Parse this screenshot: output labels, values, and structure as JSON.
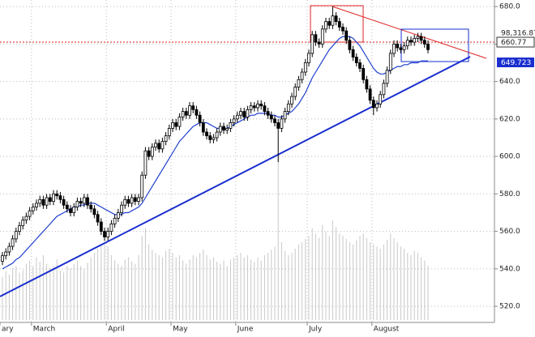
{
  "chart_data": {
    "type": "candlestick",
    "categories": [
      "ary",
      null,
      null,
      null,
      null,
      null,
      null,
      null,
      null,
      "March",
      null,
      null,
      null,
      null,
      null,
      null,
      null,
      null,
      null,
      null,
      null,
      null,
      null,
      null,
      null,
      null,
      null,
      null,
      null,
      null,
      null,
      "April",
      null,
      null,
      null,
      null,
      null,
      null,
      null,
      null,
      null,
      null,
      null,
      null,
      null,
      null,
      null,
      null,
      null,
      null,
      "May",
      null,
      null,
      null,
      null,
      null,
      null,
      null,
      null,
      null,
      null,
      null,
      null,
      null,
      null,
      null,
      null,
      null,
      null,
      "June",
      null,
      null,
      null,
      null,
      null,
      null,
      null,
      null,
      null,
      null,
      null,
      null,
      null,
      null,
      null,
      null,
      null,
      null,
      null,
      null,
      "July",
      null,
      null,
      null,
      null,
      null,
      null,
      null,
      null,
      null,
      null,
      null,
      null,
      null,
      null,
      null,
      null,
      null,
      null,
      "August",
      null,
      null,
      null,
      null,
      null,
      null,
      null,
      null,
      null,
      null,
      null,
      null,
      null,
      null,
      null,
      null
    ],
    "open": [
      544,
      547,
      549,
      552,
      556,
      560,
      563,
      566,
      568,
      571,
      573,
      575,
      577,
      574,
      578,
      576,
      580,
      579,
      577,
      574,
      572,
      570,
      573,
      576,
      575,
      578,
      574,
      572,
      569,
      565,
      560,
      557,
      560,
      564,
      567,
      570,
      574,
      577,
      575,
      578,
      576,
      578,
      590,
      603,
      600,
      605,
      607,
      604,
      608,
      611,
      615,
      618,
      616,
      621,
      624,
      622,
      627,
      625,
      622,
      618,
      613,
      611,
      609,
      610,
      613,
      616,
      614,
      615,
      618,
      620,
      622,
      624,
      621,
      625,
      627,
      626,
      628,
      627,
      624,
      622,
      620,
      618,
      615,
      620,
      624,
      628,
      632,
      637,
      641,
      645,
      650,
      655,
      665,
      661,
      660,
      668,
      672,
      670,
      675,
      672,
      669,
      667,
      662,
      657,
      653,
      650,
      647,
      641,
      636,
      630,
      626,
      628,
      633,
      639,
      646,
      655,
      660,
      658,
      657,
      659,
      662,
      661,
      663,
      664,
      662,
      660
    ],
    "high": [
      549,
      551,
      554,
      558,
      562,
      565,
      568,
      570,
      573,
      575,
      577,
      579,
      579,
      580,
      580,
      582,
      582,
      581,
      579,
      576,
      574,
      575,
      578,
      578,
      580,
      580,
      576,
      574,
      571,
      567,
      562,
      562,
      566,
      569,
      572,
      576,
      579,
      579,
      580,
      580,
      580,
      592,
      605,
      605,
      607,
      609,
      609,
      610,
      613,
      617,
      620,
      620,
      623,
      626,
      626,
      629,
      629,
      627,
      624,
      620,
      615,
      613,
      612,
      615,
      618,
      618,
      617,
      620,
      622,
      624,
      626,
      626,
      627,
      629,
      629,
      630,
      630,
      629,
      626,
      624,
      622,
      620,
      622,
      626,
      630,
      634,
      639,
      643,
      647,
      652,
      657,
      667,
      667,
      663,
      670,
      674,
      674,
      680,
      677,
      674,
      671,
      669,
      664,
      659,
      655,
      652,
      649,
      643,
      638,
      632,
      630,
      635,
      641,
      648,
      657,
      662,
      662,
      660,
      661,
      664,
      664,
      665,
      666,
      666,
      664,
      662
    ],
    "low": [
      542,
      545,
      547,
      550,
      554,
      558,
      561,
      564,
      566,
      569,
      571,
      573,
      572,
      572,
      574,
      574,
      577,
      575,
      572,
      570,
      568,
      568,
      571,
      573,
      573,
      572,
      570,
      567,
      563,
      558,
      555,
      555,
      558,
      562,
      565,
      568,
      572,
      573,
      573,
      574,
      574,
      576,
      588,
      598,
      598,
      603,
      602,
      602,
      606,
      609,
      613,
      614,
      614,
      619,
      620,
      620,
      623,
      620,
      616,
      611,
      609,
      607,
      607,
      608,
      611,
      612,
      612,
      613,
      616,
      618,
      620,
      619,
      619,
      623,
      624,
      624,
      625,
      622,
      620,
      618,
      616,
      597,
      613,
      618,
      622,
      626,
      630,
      635,
      639,
      643,
      648,
      653,
      659,
      658,
      658,
      666,
      668,
      668,
      670,
      667,
      665,
      660,
      655,
      651,
      648,
      645,
      639,
      634,
      628,
      622,
      624,
      626,
      631,
      637,
      644,
      653,
      656,
      655,
      655,
      657,
      659,
      659,
      661,
      660,
      658,
      655
    ],
    "close": [
      547,
      549,
      552,
      556,
      560,
      563,
      566,
      568,
      571,
      573,
      575,
      577,
      574,
      578,
      576,
      580,
      579,
      577,
      574,
      572,
      570,
      573,
      576,
      575,
      578,
      574,
      572,
      569,
      565,
      560,
      557,
      560,
      564,
      567,
      570,
      574,
      577,
      575,
      578,
      576,
      578,
      590,
      603,
      600,
      605,
      607,
      604,
      608,
      611,
      615,
      618,
      616,
      621,
      624,
      622,
      627,
      625,
      622,
      618,
      613,
      611,
      609,
      610,
      613,
      616,
      614,
      615,
      618,
      620,
      622,
      624,
      621,
      625,
      627,
      626,
      628,
      627,
      624,
      622,
      620,
      618,
      615,
      620,
      624,
      628,
      632,
      637,
      641,
      645,
      650,
      655,
      665,
      661,
      660,
      668,
      672,
      670,
      675,
      672,
      669,
      667,
      662,
      657,
      653,
      650,
      647,
      641,
      636,
      630,
      626,
      628,
      633,
      639,
      646,
      655,
      660,
      658,
      657,
      659,
      662,
      661,
      663,
      664,
      662,
      660,
      657
    ],
    "volume": [
      40,
      45,
      42,
      48,
      50,
      44,
      46,
      52,
      55,
      50,
      58,
      54,
      60,
      52,
      48,
      50,
      56,
      46,
      44,
      50,
      48,
      52,
      55,
      50,
      47,
      53,
      58,
      62,
      66,
      70,
      75,
      68,
      60,
      55,
      52,
      50,
      56,
      58,
      54,
      52,
      60,
      78,
      85,
      70,
      65,
      62,
      60,
      58,
      64,
      66,
      62,
      58,
      60,
      55,
      52,
      56,
      60,
      58,
      62,
      65,
      60,
      56,
      58,
      54,
      52,
      55,
      50,
      56,
      58,
      60,
      62,
      58,
      60,
      56,
      54,
      58,
      55,
      60,
      62,
      65,
      68,
      150,
      72,
      64,
      60,
      62,
      66,
      70,
      72,
      75,
      78,
      85,
      80,
      76,
      88,
      82,
      78,
      92,
      86,
      80,
      78,
      75,
      72,
      70,
      74,
      78,
      80,
      76,
      72,
      70,
      68,
      66,
      70,
      74,
      80,
      76,
      72,
      68,
      66,
      62,
      60,
      64,
      62,
      58,
      55,
      50
    ],
    "moving_average": [
      540,
      541,
      542,
      543,
      545,
      546,
      548,
      550,
      552,
      554,
      556,
      558,
      560,
      562,
      564,
      566,
      568,
      569,
      570,
      571,
      572,
      573,
      573,
      574,
      574,
      575,
      575,
      575,
      574,
      573,
      572,
      571,
      570,
      569,
      569,
      569,
      570,
      570,
      571,
      572,
      573,
      575,
      578,
      581,
      584,
      587,
      590,
      593,
      596,
      599,
      602,
      605,
      608,
      610,
      612,
      614,
      616,
      617,
      618,
      618,
      618,
      617,
      616,
      615,
      615,
      615,
      615,
      616,
      617,
      618,
      619,
      620,
      621,
      622,
      622,
      623,
      623,
      623,
      623,
      622,
      622,
      621,
      621,
      622,
      623,
      624,
      626,
      628,
      631,
      634,
      638,
      642,
      645,
      648,
      651,
      654,
      657,
      659,
      661,
      663,
      664,
      664,
      664,
      663,
      661,
      659,
      656,
      653,
      650,
      647,
      645,
      644,
      644,
      645,
      646,
      647,
      648,
      648,
      649,
      649,
      650,
      650,
      650,
      651,
      651,
      651
    ],
    "up_color": "#ffffff",
    "down_color": "#000000",
    "ma_color": "#1f3fd0",
    "volume_color": "#c8c8c8",
    "ylim": [
      511.4,
      683.5
    ],
    "yticks": [
      {
        "value": 520,
        "label": "520.0"
      },
      {
        "value": 540,
        "label": "540.0"
      },
      {
        "value": 560,
        "label": "560.0"
      },
      {
        "value": 580,
        "label": "580.0"
      },
      {
        "value": 600,
        "label": "600.0"
      },
      {
        "value": 620,
        "label": "620.0"
      },
      {
        "value": 640,
        "label": "640.0"
      },
      {
        "value": 660,
        "label": "660.0"
      },
      {
        "value": 680,
        "label": "680.0"
      }
    ],
    "grid": true,
    "price_labels": [
      "98,316.87",
      "660.77",
      "649.723"
    ]
  }
}
